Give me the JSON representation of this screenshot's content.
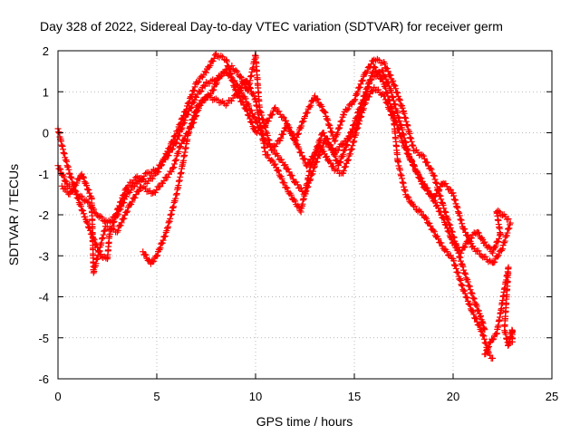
{
  "chart_data": {
    "type": "scatter",
    "title": "Day 328 of 2022, Sidereal Day-to-day VTEC variation (SDTVAR) for receiver germ",
    "xlabel": "GPS time / hours",
    "ylabel": "SDTVAR / TECUs",
    "xlim": [
      0,
      25
    ],
    "ylim": [
      -6,
      2
    ],
    "xticks": [
      0,
      5,
      10,
      15,
      20,
      25
    ],
    "yticks": [
      -6,
      -5,
      -4,
      -3,
      -2,
      -1,
      0,
      1,
      2
    ],
    "grid": true,
    "marker": "+",
    "color": "#ff0000",
    "series": [
      {
        "name": "trace-1",
        "points": [
          [
            0.0,
            -0.8
          ],
          [
            0.5,
            -1.3
          ],
          [
            1.0,
            -1.5
          ],
          [
            1.5,
            -1.7
          ],
          [
            2.0,
            -2.0
          ],
          [
            2.5,
            -2.2
          ],
          [
            3.0,
            -2.0
          ],
          [
            3.5,
            -1.5
          ],
          [
            4.0,
            -1.2
          ],
          [
            4.5,
            -1.0
          ],
          [
            5.0,
            -0.9
          ],
          [
            5.5,
            -0.6
          ],
          [
            6.0,
            -0.2
          ],
          [
            6.5,
            0.4
          ],
          [
            7.0,
            0.9
          ],
          [
            7.5,
            1.2
          ],
          [
            8.0,
            1.3
          ],
          [
            8.5,
            1.5
          ],
          [
            9.0,
            1.2
          ],
          [
            9.5,
            0.8
          ],
          [
            10.0,
            0.3
          ],
          [
            10.5,
            -0.2
          ],
          [
            11.0,
            -0.5
          ],
          [
            11.5,
            -0.8
          ],
          [
            12.0,
            -1.2
          ],
          [
            12.5,
            -1.5
          ],
          [
            13.0,
            -0.8
          ],
          [
            13.5,
            -0.2
          ],
          [
            14.0,
            -0.5
          ],
          [
            14.5,
            -0.2
          ],
          [
            15.0,
            0.0
          ],
          [
            15.5,
            0.8
          ],
          [
            16.0,
            1.6
          ],
          [
            16.5,
            1.2
          ],
          [
            17.0,
            0.4
          ],
          [
            17.5,
            -0.3
          ],
          [
            18.0,
            -0.8
          ],
          [
            18.5,
            -1.3
          ],
          [
            19.0,
            -1.6
          ],
          [
            19.5,
            -1.2
          ],
          [
            20.0,
            -1.5
          ],
          [
            20.5,
            -2.3
          ],
          [
            21.0,
            -2.8
          ],
          [
            21.5,
            -3.0
          ],
          [
            22.0,
            -3.2
          ],
          [
            22.5,
            -2.8
          ],
          [
            22.9,
            -2.2
          ]
        ]
      },
      {
        "name": "trace-2",
        "points": [
          [
            0.0,
            0.1
          ],
          [
            0.3,
            -0.5
          ],
          [
            0.6,
            -1.0
          ],
          [
            1.0,
            -1.6
          ],
          [
            1.4,
            -2.1
          ],
          [
            1.8,
            -2.6
          ],
          [
            2.2,
            -3.0
          ],
          [
            2.5,
            -3.1
          ],
          [
            2.6,
            -2.5
          ],
          [
            3.0,
            -1.9
          ],
          [
            3.5,
            -1.3
          ],
          [
            4.0,
            -1.1
          ],
          [
            4.5,
            -1.2
          ],
          [
            5.0,
            -1.0
          ],
          [
            5.5,
            -0.5
          ],
          [
            6.0,
            0.0
          ],
          [
            6.5,
            0.6
          ],
          [
            7.0,
            1.2
          ],
          [
            7.5,
            1.5
          ],
          [
            8.0,
            1.9
          ],
          [
            8.5,
            1.8
          ],
          [
            9.0,
            1.0
          ],
          [
            9.5,
            0.6
          ],
          [
            10.0,
            0.0
          ],
          [
            10.5,
            0.2
          ],
          [
            11.0,
            0.6
          ],
          [
            11.5,
            0.3
          ],
          [
            12.0,
            -0.2
          ],
          [
            12.5,
            0.4
          ],
          [
            13.0,
            0.9
          ],
          [
            13.5,
            0.5
          ],
          [
            14.0,
            -0.2
          ],
          [
            14.5,
            0.5
          ],
          [
            15.0,
            0.8
          ],
          [
            15.5,
            1.4
          ],
          [
            16.0,
            1.8
          ],
          [
            16.5,
            1.7
          ],
          [
            17.0,
            1.2
          ],
          [
            17.5,
            0.5
          ],
          [
            18.0,
            -0.4
          ],
          [
            18.5,
            -0.6
          ],
          [
            19.0,
            -1.0
          ],
          [
            19.5,
            -1.8
          ],
          [
            20.0,
            -2.5
          ],
          [
            20.5,
            -3.3
          ],
          [
            21.0,
            -4.0
          ],
          [
            21.4,
            -4.5
          ],
          [
            21.6,
            -4.8
          ]
        ]
      },
      {
        "name": "trace-3",
        "points": [
          [
            4.3,
            -2.9
          ],
          [
            4.7,
            -3.2
          ],
          [
            5.0,
            -3.0
          ],
          [
            5.5,
            -2.4
          ],
          [
            6.0,
            -1.5
          ],
          [
            6.3,
            -0.8
          ],
          [
            6.6,
            0.0
          ],
          [
            7.0,
            0.6
          ],
          [
            7.5,
            0.9
          ],
          [
            8.0,
            0.8
          ],
          [
            8.5,
            0.7
          ],
          [
            9.0,
            0.9
          ],
          [
            9.5,
            1.3
          ],
          [
            10.0,
            0.8
          ],
          [
            10.5,
            -0.5
          ],
          [
            11.0,
            -0.8
          ],
          [
            11.5,
            -1.3
          ],
          [
            12.0,
            -1.7
          ],
          [
            12.3,
            -1.9
          ],
          [
            12.8,
            -0.8
          ],
          [
            13.2,
            -0.3
          ],
          [
            13.6,
            -0.6
          ],
          [
            14.0,
            -0.9
          ],
          [
            14.4,
            -1.0
          ],
          [
            14.8,
            -0.5
          ],
          [
            15.2,
            0.2
          ],
          [
            15.6,
            0.8
          ],
          [
            16.0,
            1.1
          ],
          [
            16.5,
            0.9
          ],
          [
            17.0,
            0.3
          ],
          [
            17.2,
            -0.7
          ],
          [
            17.6,
            -1.5
          ],
          [
            18.0,
            -1.8
          ],
          [
            18.5,
            -2.0
          ],
          [
            19.0,
            -2.4
          ],
          [
            19.5,
            -2.8
          ],
          [
            20.0,
            -3.1
          ],
          [
            20.5,
            -3.8
          ],
          [
            21.0,
            -4.4
          ],
          [
            21.5,
            -4.9
          ],
          [
            21.8,
            -5.4
          ],
          [
            22.0,
            -5.5
          ]
        ]
      },
      {
        "name": "trace-4",
        "points": [
          [
            0.2,
            -1.3
          ],
          [
            0.6,
            -1.5
          ],
          [
            1.2,
            -1.0
          ],
          [
            1.7,
            -1.6
          ],
          [
            1.8,
            -3.4
          ],
          [
            2.4,
            -2.3
          ],
          [
            3.0,
            -2.4
          ],
          [
            3.6,
            -1.8
          ],
          [
            4.2,
            -1.3
          ],
          [
            4.8,
            -1.5
          ],
          [
            5.3,
            -1.2
          ],
          [
            5.8,
            -0.9
          ],
          [
            6.2,
            -0.3
          ],
          [
            6.8,
            0.2
          ],
          [
            7.2,
            0.7
          ],
          [
            7.8,
            1.0
          ],
          [
            8.2,
            1.4
          ],
          [
            8.8,
            1.6
          ],
          [
            9.2,
            1.4
          ],
          [
            9.6,
            1.0
          ],
          [
            10.0,
            1.9
          ],
          [
            10.2,
            0.6
          ],
          [
            10.8,
            -0.4
          ],
          [
            11.2,
            -0.2
          ],
          [
            11.6,
            0.2
          ],
          [
            12.2,
            -0.4
          ],
          [
            12.6,
            -0.8
          ],
          [
            13.0,
            -0.5
          ],
          [
            13.4,
            0.0
          ],
          [
            13.8,
            -0.3
          ],
          [
            14.2,
            -0.8
          ],
          [
            14.6,
            -0.3
          ],
          [
            15.2,
            0.5
          ],
          [
            15.8,
            1.3
          ],
          [
            16.4,
            1.5
          ],
          [
            16.8,
            1.1
          ],
          [
            17.4,
            0.1
          ],
          [
            17.8,
            -0.6
          ],
          [
            18.2,
            -1.0
          ],
          [
            18.6,
            -1.3
          ],
          [
            19.2,
            -1.8
          ],
          [
            19.6,
            -2.2
          ],
          [
            20.0,
            -2.7
          ],
          [
            20.4,
            -2.9
          ],
          [
            20.8,
            -2.6
          ],
          [
            21.2,
            -2.4
          ],
          [
            21.6,
            -2.7
          ],
          [
            22.0,
            -2.9
          ],
          [
            22.4,
            -2.5
          ],
          [
            22.2,
            -1.9
          ],
          [
            22.8,
            -2.1
          ]
        ]
      },
      {
        "name": "trace-5",
        "points": [
          [
            21.6,
            -5.4
          ],
          [
            21.9,
            -5.1
          ],
          [
            22.2,
            -4.9
          ],
          [
            22.4,
            -4.4
          ],
          [
            22.6,
            -3.8
          ],
          [
            22.8,
            -3.3
          ],
          [
            22.6,
            -4.8
          ],
          [
            22.8,
            -5.2
          ],
          [
            23.0,
            -4.8
          ],
          [
            23.0,
            -5.1
          ]
        ]
      }
    ]
  }
}
